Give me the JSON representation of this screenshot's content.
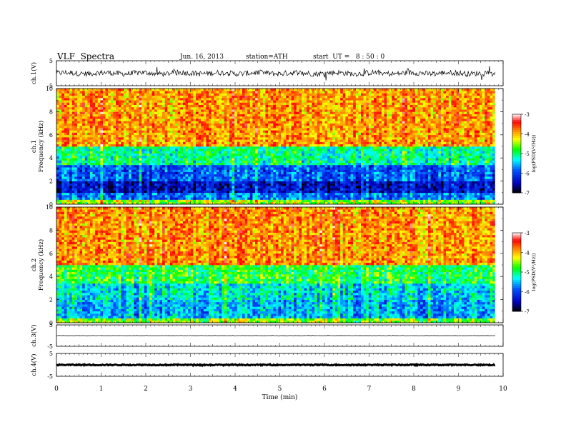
{
  "header": {
    "title": "VLF  Spectra",
    "date": "Jun. 16, 2013",
    "station": "station=ATH",
    "start": "start  UT =   8 : 50 : 0"
  },
  "chart_data": [
    {
      "type": "line",
      "ylabel": "ch.1(V)",
      "ylim": [
        -5,
        5
      ],
      "yticks": [
        "5",
        "-5"
      ],
      "description": "waveform ch.1",
      "level": 0,
      "noise_amplitude": 1.1
    },
    {
      "type": "heatmap",
      "ylabel": "ch.1\nFrequency (kHz)",
      "ylabel_lines": [
        "ch.1",
        "Frequency (kHz)"
      ],
      "ylim": [
        0,
        10
      ],
      "yticks": [
        "0",
        "2",
        "4",
        "6",
        "8",
        "10"
      ],
      "colorbar": {
        "label": "log(PSD(V²/Hz))",
        "range": [
          -7,
          -3
        ],
        "ticks": [
          "-3",
          "-4",
          "-5",
          "-6",
          "-7"
        ]
      },
      "bands_khz_to_log_psd": [
        {
          "from": 0,
          "to": 0.5,
          "value": -4.5
        },
        {
          "from": 0.5,
          "to": 1.0,
          "value": -5.8
        },
        {
          "from": 1.0,
          "to": 2.0,
          "value": -6.4
        },
        {
          "from": 2.0,
          "to": 3.5,
          "value": -5.9
        },
        {
          "from": 3.5,
          "to": 5.0,
          "value": -5.1
        },
        {
          "from": 5.0,
          "to": 10.0,
          "value": -3.9
        }
      ]
    },
    {
      "type": "heatmap",
      "ylabel": "ch.2\nFrequency (kHz)",
      "ylabel_lines": [
        "ch.2",
        "Frequency (kHz)"
      ],
      "ylim": [
        0,
        10
      ],
      "yticks": [
        "0",
        "2",
        "4",
        "6",
        "8",
        "10"
      ],
      "colorbar": {
        "label": "log(PSD(V²/Hz))",
        "range": [
          -7,
          -3
        ],
        "ticks": [
          "-3",
          "-4",
          "-5",
          "-6",
          "-7"
        ]
      },
      "bands_khz_to_log_psd": [
        {
          "from": 0,
          "to": 0.5,
          "value": -4.6
        },
        {
          "from": 0.5,
          "to": 2.0,
          "value": -5.6
        },
        {
          "from": 2.0,
          "to": 3.5,
          "value": -5.4
        },
        {
          "from": 3.5,
          "to": 5.0,
          "value": -4.9
        },
        {
          "from": 5.0,
          "to": 10.0,
          "value": -3.9
        }
      ]
    },
    {
      "type": "line",
      "ylabel": "ch.3(V)",
      "ylim": [
        -5,
        5
      ],
      "yticks": [
        "5",
        "-5"
      ],
      "level": 0,
      "noise_amplitude": 0.05
    },
    {
      "type": "line",
      "ylabel": "ch.4(V)",
      "ylim": [
        -5,
        5
      ],
      "yticks": [
        "5",
        "-5"
      ],
      "level": 0,
      "noise_amplitude": 0.25
    }
  ],
  "xaxis": {
    "label": "Time  (min)",
    "ticks": [
      "0",
      "1",
      "2",
      "3",
      "4",
      "5",
      "6",
      "7",
      "8",
      "9",
      "10"
    ],
    "xlim": [
      0,
      10
    ],
    "data_end_min": 9.82
  },
  "colors": {
    "high": "#ff0000",
    "mid_high": "#ffff00",
    "mid": "#00ff00",
    "mid_low": "#00ffff",
    "low": "#0000ff",
    "lowest": "#000000"
  }
}
